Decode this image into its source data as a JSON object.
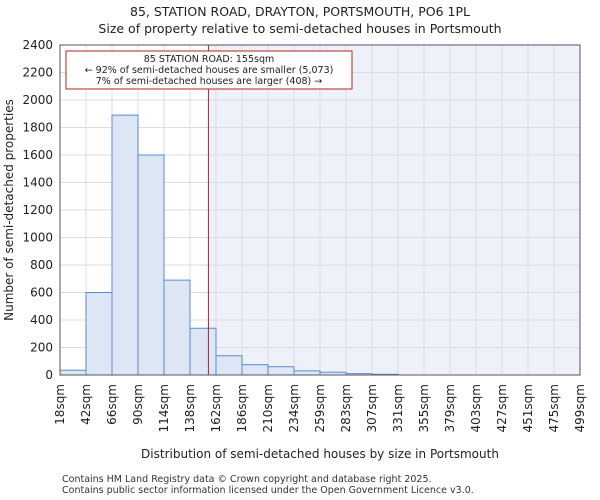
{
  "colors": {
    "bar_fill": "#dce6f5",
    "bar_stroke": "#5b8bd0",
    "shade": "#eef1fa",
    "grid": "#d9dde8",
    "marker": "#b22222",
    "annotation_border": "#b22222"
  },
  "footer": {
    "line1": "Contains HM Land Registry data © Crown copyright and database right 2025.",
    "line2": "Contains public sector information licensed under the Open Government Licence v3.0."
  },
  "chart_data": {
    "type": "bar",
    "title": "85, STATION ROAD, DRAYTON, PORTSMOUTH, PO6 1PL",
    "subtitle": "Size of property relative to semi-detached houses in Portsmouth",
    "xlabel": "Distribution of semi-detached houses by size in Portsmouth",
    "ylabel": "Number of semi-detached properties",
    "categories": [
      "18sqm",
      "42sqm",
      "66sqm",
      "90sqm",
      "114sqm",
      "138sqm",
      "162sqm",
      "186sqm",
      "210sqm",
      "234sqm",
      "259sqm",
      "283sqm",
      "307sqm",
      "331sqm",
      "355sqm",
      "379sqm",
      "403sqm",
      "427sqm",
      "451sqm",
      "475sqm",
      "499sqm"
    ],
    "values": [
      35,
      600,
      1890,
      1600,
      690,
      340,
      140,
      75,
      60,
      30,
      20,
      10,
      5,
      0,
      0,
      0,
      0,
      0,
      0,
      0,
      0
    ],
    "ylim": [
      0,
      2400
    ],
    "yticks": [
      0,
      200,
      400,
      600,
      800,
      1000,
      1200,
      1400,
      1600,
      1800,
      2000,
      2200,
      2400
    ],
    "grid": true,
    "marker": {
      "value": 155,
      "label": "85 STATION ROAD: 155sqm"
    },
    "annotation": {
      "line1": "85 STATION ROAD: 155sqm",
      "line2": "← 92% of semi-detached houses are smaller (5,073)",
      "line3": "7% of semi-detached houses are larger (408) →"
    }
  }
}
